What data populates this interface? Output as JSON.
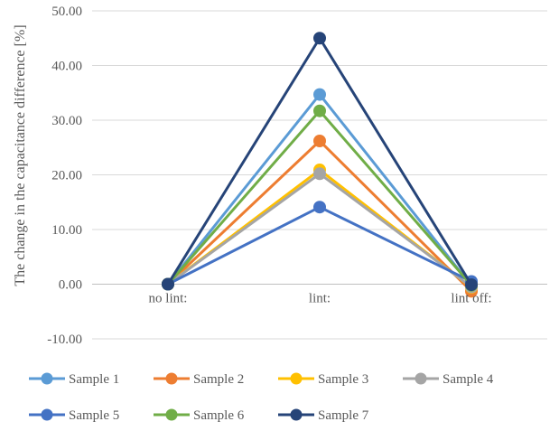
{
  "chart_data": {
    "type": "line",
    "title": "",
    "xlabel": "",
    "ylabel": "The change in the capacitance difference [%]",
    "categories": [
      "no lint:",
      "lint:",
      "lint off:"
    ],
    "ylim": [
      -10,
      50
    ],
    "yticks": [
      "-10.00",
      "0.00",
      "10.00",
      "20.00",
      "30.00",
      "40.00",
      "50.00"
    ],
    "grid": true,
    "legend_position": "bottom",
    "series": [
      {
        "name": "Sample 1",
        "color": "#5b9bd5",
        "values": [
          0,
          34.7,
          -0.3
        ]
      },
      {
        "name": "Sample 2",
        "color": "#ed7d31",
        "values": [
          0,
          26.2,
          -1.3
        ]
      },
      {
        "name": "Sample 3",
        "color": "#ffc000",
        "values": [
          0,
          20.9,
          -0.6
        ]
      },
      {
        "name": "Sample 4",
        "color": "#a5a5a5",
        "values": [
          0,
          20.2,
          -0.5
        ]
      },
      {
        "name": "Sample 5",
        "color": "#4472c4",
        "values": [
          0,
          14.1,
          0.5
        ]
      },
      {
        "name": "Sample 6",
        "color": "#70ad47",
        "values": [
          0,
          31.7,
          -0.2
        ]
      },
      {
        "name": "Sample 7",
        "color": "#264478",
        "values": [
          0,
          45.0,
          -0.1
        ]
      }
    ]
  }
}
